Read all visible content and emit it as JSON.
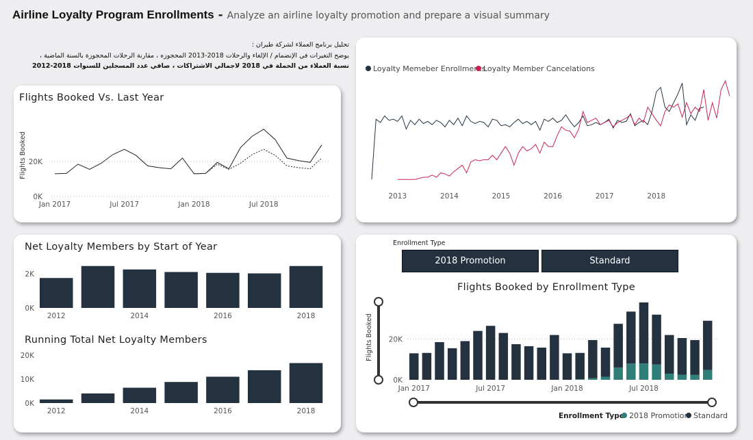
{
  "header": {
    "title": "Airline Loyalty Program Enrollments",
    "dash": " - ",
    "subtitle": "Analyze an airline loyalty promotion and prepare a visual summary"
  },
  "description": {
    "line1": "تحليل برنامج العملاء  لشركة طيران :",
    "line2": "يوضح التغيرات في  الإنضمام / الإلغاء والرحلات  2018-2013 المحجوزه ، مقارنة الرحلات المحجوزة بالسنة الماضية ،",
    "line3": "نسبة العملاء من الحملة في 2018 لاجمالي الاشتراكات ، صافي عدد المسجلين للسنوات 2018-2012"
  },
  "colors": {
    "dark": "#243240",
    "pink": "#c9244f",
    "teal": "#2f7f78",
    "line": "#222222"
  },
  "chart_data": [
    {
      "id": "flights_vs_last_year",
      "type": "line",
      "title": "Flights Booked Vs. Last Year",
      "ylabel": "Flights Booked",
      "y_ticks": [
        "20K",
        "0K"
      ],
      "ylim": [
        0,
        42000
      ],
      "x_ticks": [
        "Jan 2017",
        "Jul 2017",
        "Jan 2018",
        "Jul 2018"
      ],
      "x_tick_index": [
        0,
        6,
        12,
        18
      ],
      "series": [
        {
          "style": "solid",
          "values": [
            13000,
            13200,
            18500,
            15500,
            19000,
            24000,
            27000,
            23500,
            17500,
            16500,
            15800,
            22000,
            13000,
            13200,
            19500,
            15800,
            28000,
            34500,
            38500,
            32500,
            22000,
            20500,
            19500,
            29500
          ]
        },
        {
          "style": "dotted",
          "start": 12,
          "values": [
            13000,
            13200,
            18500,
            15500,
            19000,
            24000,
            27000,
            23500,
            17500,
            16500,
            15800,
            22000
          ]
        }
      ],
      "grid": "dotted"
    },
    {
      "id": "enroll_cancel",
      "type": "line",
      "legend": [
        "Loyalty Memeber Enrollments",
        "Loyalty Member Cancelations"
      ],
      "x_ticks": [
        "2013",
        "2014",
        "2015",
        "2016",
        "2017",
        "2018"
      ],
      "x_tick_index": [
        6,
        18,
        30,
        42,
        54,
        66
      ],
      "ylim": [
        0,
        100
      ],
      "series": [
        {
          "name": "Loyalty Memeber Enrollments",
          "color": "dark",
          "start": 0,
          "values": [
            8,
            63,
            60,
            66,
            62,
            63,
            61,
            66,
            54,
            62,
            58,
            63,
            59,
            61,
            58,
            62,
            60,
            56,
            62,
            58,
            64,
            57,
            66,
            61,
            59,
            61,
            60,
            56,
            63,
            62,
            57,
            58,
            56,
            60,
            63,
            59,
            61,
            58,
            61,
            53,
            63,
            61,
            64,
            60,
            62,
            67,
            61,
            56,
            60,
            66,
            57,
            58,
            60,
            58,
            60,
            63,
            55,
            62,
            60,
            61,
            68,
            57,
            60,
            62,
            58,
            70,
            88,
            92,
            74,
            70,
            78,
            86,
            96,
            58,
            67,
            62,
            73,
            74
          ]
        },
        {
          "name": "Loyalty Member Cancelations",
          "color": "pink",
          "start": 6,
          "values": [
            8,
            8,
            8,
            8,
            8,
            9,
            10,
            10,
            12,
            10,
            14,
            13,
            11,
            15,
            18,
            21,
            14,
            24,
            26,
            25,
            26,
            26,
            30,
            26,
            32,
            38,
            32,
            21,
            32,
            38,
            34,
            36,
            40,
            32,
            42,
            38,
            38,
            48,
            56,
            53,
            52,
            46,
            54,
            70,
            60,
            62,
            64,
            58,
            60,
            62,
            56,
            60,
            62,
            64,
            67,
            58,
            64,
            60,
            74,
            68,
            62,
            57,
            70,
            76,
            74,
            77,
            65,
            78,
            68,
            74,
            70,
            90,
            62,
            78,
            64,
            90,
            98,
            84
          ]
        }
      ]
    },
    {
      "id": "net_members_start_year",
      "type": "bar",
      "title": "Net Loyalty Members by Start of Year",
      "categories": [
        "2012",
        "2013",
        "2014",
        "2015",
        "2016",
        "2017",
        "2018"
      ],
      "x_ticks": [
        "2012",
        "2014",
        "2016",
        "2018"
      ],
      "y_ticks": [
        "2K",
        "0K"
      ],
      "values": [
        1750,
        2450,
        2250,
        2100,
        2050,
        2020,
        2450
      ],
      "ylim": [
        0,
        2600
      ]
    },
    {
      "id": "running_total",
      "type": "bar",
      "title": "Running Total Net Loyalty Members",
      "categories": [
        "2012",
        "2013",
        "2014",
        "2015",
        "2016",
        "2017",
        "2018"
      ],
      "x_ticks": [
        "2012",
        "2014",
        "2016",
        "2018"
      ],
      "y_ticks": [
        "20K",
        "10K",
        "0K"
      ],
      "values": [
        1500,
        4000,
        6400,
        8800,
        11000,
        13700,
        16700
      ],
      "ylim": [
        0,
        20000
      ]
    },
    {
      "id": "flights_by_enrollment",
      "type": "bar",
      "stacked": true,
      "title": "Flights Booked by Enrollment Type",
      "ylabel": "Flights Booked",
      "y_ticks": [
        "20K",
        "0K"
      ],
      "ylim": [
        0,
        40000
      ],
      "x_ticks": [
        "Jan 2017",
        "Jul 2017",
        "Jan 2018",
        "Jul 2018"
      ],
      "x_tick_index": [
        0,
        6,
        12,
        18
      ],
      "legend_title": "Enrollment Type",
      "series": [
        {
          "name": "2018 Promotion",
          "color": "teal",
          "values": [
            0,
            0,
            0,
            0,
            0,
            0,
            0,
            0,
            0,
            0,
            0,
            0,
            0,
            300,
            800,
            1500,
            6000,
            8000,
            8000,
            7500,
            3000,
            2500,
            2400,
            4800
          ]
        },
        {
          "name": "Standard",
          "color": "dark",
          "values": [
            13000,
            13200,
            18500,
            15500,
            19000,
            24000,
            26500,
            23000,
            17500,
            16500,
            15800,
            22000,
            13000,
            12900,
            18700,
            14300,
            21500,
            25500,
            30000,
            24500,
            19000,
            18000,
            17100,
            24200
          ]
        }
      ]
    }
  ],
  "slicer": {
    "label": "Enrollment Type",
    "options": [
      "2018 Promotion",
      "Standard"
    ]
  }
}
